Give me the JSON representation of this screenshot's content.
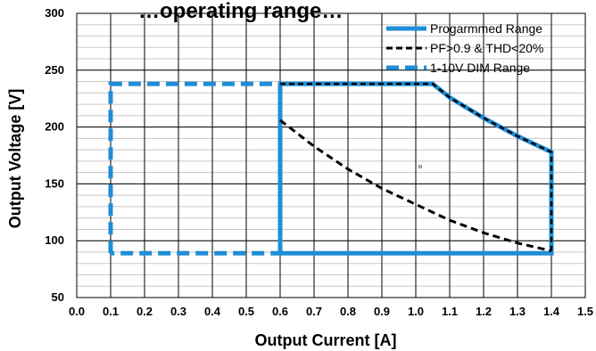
{
  "chart_data": {
    "type": "line",
    "title": "…operating range…",
    "xlabel": "Output Current [A]",
    "ylabel": "Output  Voltage [V]",
    "xlim": [
      0.0,
      1.5
    ],
    "ylim": [
      50,
      300
    ],
    "x_major_ticks": [
      0.0,
      0.1,
      0.2,
      0.3,
      0.4,
      0.5,
      0.6,
      0.7,
      0.8,
      0.9,
      1.0,
      1.1,
      1.2,
      1.3,
      1.4,
      1.5
    ],
    "x_tick_labels": [
      "0.0",
      "0.1",
      "0.2",
      "0.3",
      "0.4",
      "0.5",
      "0.6",
      "0.7",
      "0.8",
      "0.9",
      "1.0",
      "1.1",
      "1.2",
      "1.3",
      "1.4",
      "1.5"
    ],
    "y_major_ticks": [
      50,
      100,
      150,
      200,
      250,
      300
    ],
    "y_tick_labels": [
      "50",
      "100",
      "150",
      "200",
      "250",
      "300"
    ],
    "y_minor_step": 10,
    "grid": true,
    "legend_position": "top-right",
    "series": [
      {
        "name": "Progarmmed Range",
        "color": "#1e8ed8",
        "style": "solid",
        "points": [
          [
            0.6,
            89
          ],
          [
            0.6,
            238
          ],
          [
            1.05,
            238
          ],
          [
            1.1,
            226
          ],
          [
            1.2,
            208
          ],
          [
            1.3,
            192
          ],
          [
            1.4,
            178
          ],
          [
            1.4,
            89
          ],
          [
            0.6,
            89
          ]
        ]
      },
      {
        "name": "PF>0.9 & THD<20%",
        "color": "#000000",
        "style": "dashed",
        "points": [
          [
            0.6,
            238
          ],
          [
            1.05,
            238
          ],
          [
            1.1,
            226
          ],
          [
            1.2,
            208
          ],
          [
            1.3,
            192
          ],
          [
            1.4,
            178
          ],
          [
            1.4,
            89
          ]
        ],
        "curve_points": [
          [
            0.6,
            206
          ],
          [
            0.7,
            183
          ],
          [
            0.8,
            163
          ],
          [
            0.9,
            146
          ],
          [
            1.0,
            132
          ],
          [
            1.1,
            118
          ],
          [
            1.2,
            107
          ],
          [
            1.3,
            98
          ],
          [
            1.4,
            91
          ]
        ]
      },
      {
        "name": "1-10V DIM Range",
        "color": "#1e8ed8",
        "style": "dashed",
        "points": [
          [
            0.1,
            89
          ],
          [
            0.1,
            238
          ],
          [
            0.6,
            238
          ],
          [
            0.6,
            89
          ],
          [
            0.1,
            89
          ]
        ]
      }
    ]
  }
}
